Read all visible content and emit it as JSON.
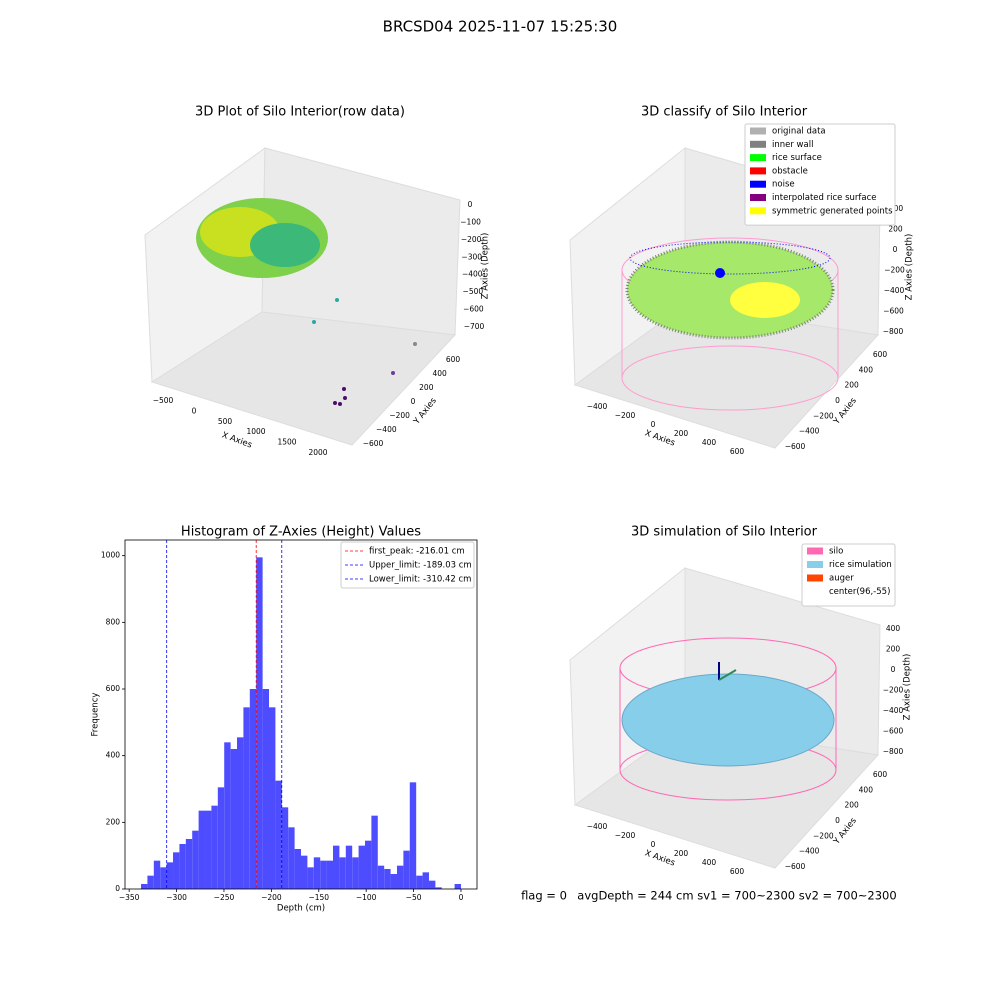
{
  "title": "BRCSD04 2025-11-07 15:25:30",
  "footer": {
    "flag": "flag = 0",
    "stats": "avgDepth = 244 cm  sv1 = 700~2300  sv2 = 700~2300"
  },
  "chart_data": [
    {
      "type": "scatter3d",
      "title": "3D Plot of Silo Interior(row data)",
      "xlabel": "X Axies",
      "ylabel": "Y Axies",
      "zlabel": "Z Axies (Depth)",
      "xticks": [
        {
          "value": -500,
          "label": "−500"
        },
        0,
        500,
        1000,
        1500,
        2000
      ],
      "yticks": [
        {
          "value": -600,
          "label": "−600"
        },
        {
          "value": -400,
          "label": "−400"
        },
        {
          "value": -200,
          "label": "−200"
        },
        0,
        200,
        400,
        600
      ],
      "zticks": [
        0,
        {
          "value": -100,
          "label": "−100"
        },
        {
          "value": -200,
          "label": "−200"
        },
        {
          "value": -300,
          "label": "−300"
        },
        {
          "value": -400,
          "label": "−400"
        },
        {
          "value": -500,
          "label": "−500"
        },
        {
          "value": -600,
          "label": "−600"
        },
        {
          "value": -700,
          "label": "−700"
        }
      ]
    },
    {
      "type": "scatter3d",
      "title": "3D classify of Silo Interior",
      "xlabel": "X Axies",
      "ylabel": "Y Axies",
      "zlabel": "Z Axies (Depth)",
      "xticks": [
        {
          "value": -400,
          "label": "−400"
        },
        {
          "value": -200,
          "label": "−200"
        },
        0,
        200,
        400,
        600
      ],
      "yticks": [
        {
          "value": -600,
          "label": "−600"
        },
        {
          "value": -400,
          "label": "−400"
        },
        {
          "value": -200,
          "label": "−200"
        },
        0,
        200,
        400,
        600
      ],
      "zticks": [
        400,
        200,
        0,
        {
          "value": -200,
          "label": "−200"
        },
        {
          "value": -400,
          "label": "−400"
        },
        {
          "value": -600,
          "label": "−600"
        },
        {
          "value": -800,
          "label": "−800"
        }
      ],
      "legend": [
        {
          "name": "original data",
          "color": "#b0b0b0"
        },
        {
          "name": "inner wall",
          "color": "#808080"
        },
        {
          "name": "rice surface",
          "color": "#00ff00"
        },
        {
          "name": "obstacle",
          "color": "#ff0000"
        },
        {
          "name": "noise",
          "color": "#0000ff"
        },
        {
          "name": "interpolated rice surface",
          "color": "#800080"
        },
        {
          "name": "symmetric generated points",
          "color": "#ffff00"
        }
      ]
    },
    {
      "type": "histogram",
      "title": "Histogram of Z-Axies (Height) Values",
      "xlabel": "Depth (cm)",
      "ylabel": "Frequency",
      "color": "#4d4dff",
      "bins": [
        -337.5,
        -330.75,
        -324,
        -317.25,
        -310.5,
        -303.75,
        -297,
        -290.25,
        -283.5,
        -276.75,
        -270,
        -263.25,
        -256.5,
        -249.75,
        -243,
        -236.25,
        -229.5,
        -222.75,
        -216,
        -209.25,
        -202.5,
        -195.75,
        -189,
        -182.25,
        -175.5,
        -168.75,
        -162,
        -155.25,
        -148.5,
        -141.75,
        -135,
        -128.25,
        -121.5,
        -114.75,
        -108,
        -101.25,
        -94.5,
        -87.75,
        -81,
        -74.25,
        -67.5,
        -60.75,
        -54,
        -47.25,
        -40.5,
        -33.75,
        -27,
        -20.25,
        -13.5,
        -6.75,
        0
      ],
      "values": [
        15,
        40,
        85,
        65,
        80,
        110,
        135,
        150,
        175,
        235,
        235,
        250,
        305,
        440,
        420,
        455,
        545,
        600,
        995,
        600,
        545,
        325,
        245,
        185,
        120,
        100,
        65,
        95,
        85,
        85,
        130,
        95,
        130,
        95,
        130,
        145,
        220,
        70,
        60,
        45,
        70,
        115,
        320,
        40,
        50,
        25,
        5,
        0,
        0,
        15
      ],
      "xlim": [
        -354.4,
        16.9
      ],
      "ylim": [
        0,
        1047
      ],
      "xticks": [
        {
          "value": -350,
          "label": "−350"
        },
        {
          "value": -300,
          "label": "−300"
        },
        {
          "value": -250,
          "label": "−250"
        },
        {
          "value": -200,
          "label": "−200"
        },
        {
          "value": -150,
          "label": "−150"
        },
        {
          "value": -100,
          "label": "−100"
        },
        {
          "value": -50,
          "label": "−50"
        },
        0
      ],
      "yticks": [
        0,
        200,
        400,
        600,
        800,
        1000
      ],
      "lines": [
        {
          "name": "first_peak: -216.01 cm",
          "value": -216.01,
          "color": "#ff0000"
        },
        {
          "name": "Upper_limit: -189.03 cm",
          "value": -189.03,
          "color": "#0000ff"
        },
        {
          "name": "Lower_limit: -310.42 cm",
          "value": -310.42,
          "color": "#0000ff"
        }
      ],
      "legend_loc": "upper right"
    },
    {
      "type": "scatter3d",
      "title": "3D simulation of Silo Interior",
      "xlabel": "X Axies",
      "ylabel": "Y Axies",
      "zlabel": "Z Axies (Depth)",
      "xticks": [
        {
          "value": -400,
          "label": "−400"
        },
        {
          "value": -200,
          "label": "−200"
        },
        0,
        200,
        400,
        600
      ],
      "yticks": [
        {
          "value": -600,
          "label": "−600"
        },
        {
          "value": -400,
          "label": "−400"
        },
        {
          "value": -200,
          "label": "−200"
        },
        0,
        200,
        400,
        600
      ],
      "zticks": [
        400,
        200,
        0,
        {
          "value": -200,
          "label": "−200"
        },
        {
          "value": -400,
          "label": "−400"
        },
        {
          "value": -600,
          "label": "−600"
        },
        {
          "value": -800,
          "label": "−800"
        }
      ],
      "legend": [
        {
          "name": "silo",
          "color": "#ff69b4"
        },
        {
          "name": "rice simulation",
          "color": "#87ceeb"
        },
        {
          "name": "auger",
          "color": "#ff4500"
        },
        {
          "name": "center(96,-55)",
          "color": "#ffffff"
        }
      ]
    }
  ]
}
